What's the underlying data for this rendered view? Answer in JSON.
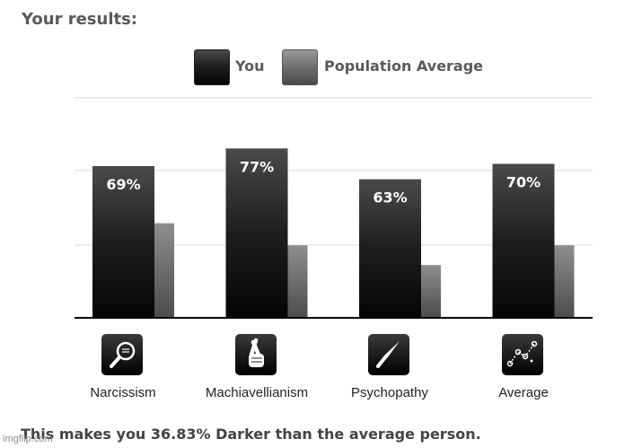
{
  "heading": "Your results:",
  "legend": {
    "you": "You",
    "population": "Population Average"
  },
  "chart_data": {
    "type": "bar",
    "categories": [
      "Narcissism",
      "Machiavellianism",
      "Psychopathy",
      "Average"
    ],
    "series": [
      {
        "name": "You",
        "values": [
          69,
          77,
          63,
          70
        ],
        "labels": [
          "69%",
          "77%",
          "63%",
          "70%"
        ],
        "color": "#1a1a1a"
      },
      {
        "name": "Population Average",
        "values": [
          43,
          33,
          24,
          33
        ],
        "color": "#707070"
      }
    ],
    "ylim": [
      0,
      100
    ],
    "grid": true,
    "legend_position": "top-center"
  },
  "icons": [
    "magnifying-glass-icon",
    "crossed-fingers-icon",
    "knife-icon",
    "scatter-plot-icon"
  ],
  "footer": "This makes you 36.83% Darker than the average person.",
  "watermark": "imgflip.com"
}
